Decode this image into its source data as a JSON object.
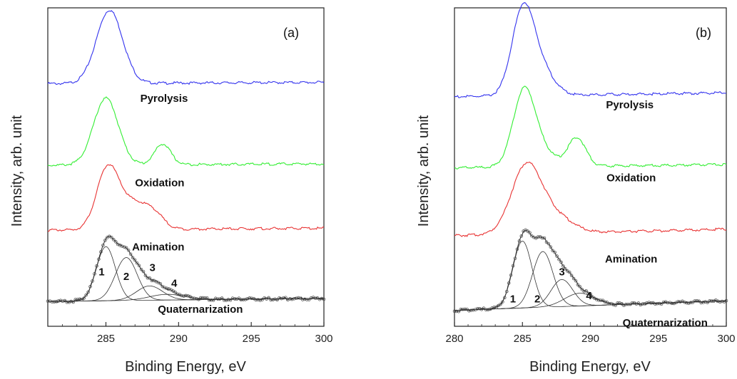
{
  "chart_data": [
    {
      "type": "line",
      "panel_label": "(a)",
      "xlabel": "Binding Energy, eV",
      "ylabel": "Intensity, arb. unit",
      "xlim": [
        281,
        300
      ],
      "xticks": [
        285,
        290,
        295,
        300
      ],
      "ylim": [
        0,
        1
      ],
      "colors": {
        "Pyrolysis": "#3333ee",
        "Oxidation": "#33ee33",
        "Amination": "#e83333",
        "Quaternarization": "#333333"
      },
      "series": [
        {
          "name": "Pyrolysis",
          "baseline": 0.762,
          "peaks": [
            [
              285.25,
              0.23,
              0.9
            ]
          ],
          "tail": 0.004,
          "x": [
            281,
            283,
            284,
            284.5,
            285,
            285.5,
            286,
            286.5,
            287,
            288,
            290,
            295,
            300
          ]
        },
        {
          "name": "Oxidation",
          "baseline": 0.506,
          "peaks": [
            [
              285.0,
              0.21,
              0.85
            ],
            [
              288.9,
              0.065,
              0.55
            ]
          ],
          "tail": 0.004,
          "x": [
            281,
            283,
            284,
            285,
            286,
            287,
            288,
            288.9,
            290,
            295,
            300
          ]
        },
        {
          "name": "Amination",
          "baseline": 0.302,
          "peaks": [
            [
              285.1,
              0.185,
              0.75
            ],
            [
              286.8,
              0.08,
              1.0
            ],
            [
              288.3,
              0.04,
              0.7
            ]
          ],
          "tail": 0.006,
          "x": [
            281,
            283,
            284,
            285,
            286,
            287,
            288,
            289,
            290,
            295,
            300
          ]
        },
        {
          "name": "Quaternarization",
          "baseline": 0.078,
          "peaks": [],
          "tail": 0.01,
          "x": [
            281,
            284,
            285,
            286,
            287,
            288,
            290,
            295,
            300
          ],
          "components": [
            {
              "label": "1",
              "center": 285.0,
              "height": 0.17,
              "width": 0.65
            },
            {
              "label": "2",
              "center": 286.4,
              "height": 0.135,
              "width": 0.75
            },
            {
              "label": "3",
              "center": 288.0,
              "height": 0.045,
              "width": 0.9
            },
            {
              "label": "4",
              "center": 289.2,
              "height": 0.018,
              "width": 1.2
            }
          ]
        }
      ],
      "labels": [
        {
          "text": "Pyrolysis",
          "x": 289,
          "y": 0.705
        },
        {
          "text": "Oxidation",
          "x": 288.7,
          "y": 0.44
        },
        {
          "text": "Amination",
          "x": 288.6,
          "y": 0.238
        },
        {
          "text": "Quaternarization",
          "x": 291.5,
          "y": 0.042
        }
      ],
      "peak_labels": [
        {
          "text": "1",
          "x": 284.7,
          "y": 0.16
        },
        {
          "text": "2",
          "x": 286.4,
          "y": 0.145
        },
        {
          "text": "3",
          "x": 288.2,
          "y": 0.173
        },
        {
          "text": "4",
          "x": 289.7,
          "y": 0.124
        }
      ]
    },
    {
      "type": "line",
      "panel_label": "(b)",
      "xlabel": "Binding Energy, eV",
      "ylabel": "Intensity, arb. unit",
      "xlim": [
        280,
        300
      ],
      "xticks": [
        280,
        285,
        290,
        295,
        300
      ],
      "ylim": [
        0,
        1
      ],
      "colors": {
        "Pyrolysis": "#3333ee",
        "Oxidation": "#33ee33",
        "Amination": "#e83333",
        "Quaternarization": "#333333"
      },
      "series": [
        {
          "name": "Pyrolysis",
          "baseline": 0.721,
          "peaks": [
            [
              285.0,
              0.245,
              0.8
            ],
            [
              286.2,
              0.09,
              1.0
            ]
          ],
          "tail": 0.012,
          "x": [
            280,
            283,
            284,
            285,
            286,
            287,
            288,
            290,
            295,
            300
          ]
        },
        {
          "name": "Oxidation",
          "baseline": 0.498,
          "peaks": [
            [
              285.1,
              0.225,
              0.8
            ],
            [
              286.3,
              0.05,
              1.0
            ],
            [
              289.0,
              0.09,
              0.65
            ]
          ],
          "tail": 0.01,
          "x": [
            280,
            283,
            284,
            285,
            286,
            287,
            288,
            289,
            290,
            295,
            300
          ]
        },
        {
          "name": "Amination",
          "baseline": 0.285,
          "peaks": [
            [
              285.3,
              0.215,
              1.1
            ],
            [
              287.5,
              0.05,
              1.2
            ]
          ],
          "tail": 0.02,
          "x": [
            280,
            283,
            284,
            285,
            286,
            287,
            288,
            290,
            295,
            300
          ]
        },
        {
          "name": "Quaternarization",
          "baseline": 0.05,
          "peaks": [],
          "tail": 0.03,
          "x": [
            280,
            283,
            284,
            285,
            286,
            287,
            288,
            290,
            295,
            300
          ],
          "components": [
            {
              "label": "1",
              "center": 285.0,
              "height": 0.21,
              "width": 0.7
            },
            {
              "label": "2",
              "center": 286.5,
              "height": 0.175,
              "width": 0.75
            },
            {
              "label": "3",
              "center": 287.9,
              "height": 0.085,
              "width": 0.8
            },
            {
              "label": "4",
              "center": 289.2,
              "height": 0.04,
              "width": 1.1
            }
          ]
        }
      ],
      "labels": [
        {
          "text": "Pyrolysis",
          "x": 292.9,
          "y": 0.685
        },
        {
          "text": "Oxidation",
          "x": 293.0,
          "y": 0.455
        },
        {
          "text": "Amination",
          "x": 293.0,
          "y": 0.2
        },
        {
          "text": "Quaternarization",
          "x": 295.5,
          "y": 0.0
        }
      ],
      "peak_labels": [
        {
          "text": "1",
          "x": 284.3,
          "y": 0.075
        },
        {
          "text": "2",
          "x": 286.1,
          "y": 0.075
        },
        {
          "text": "3",
          "x": 287.9,
          "y": 0.16
        },
        {
          "text": "4",
          "x": 289.9,
          "y": 0.085
        }
      ]
    }
  ]
}
